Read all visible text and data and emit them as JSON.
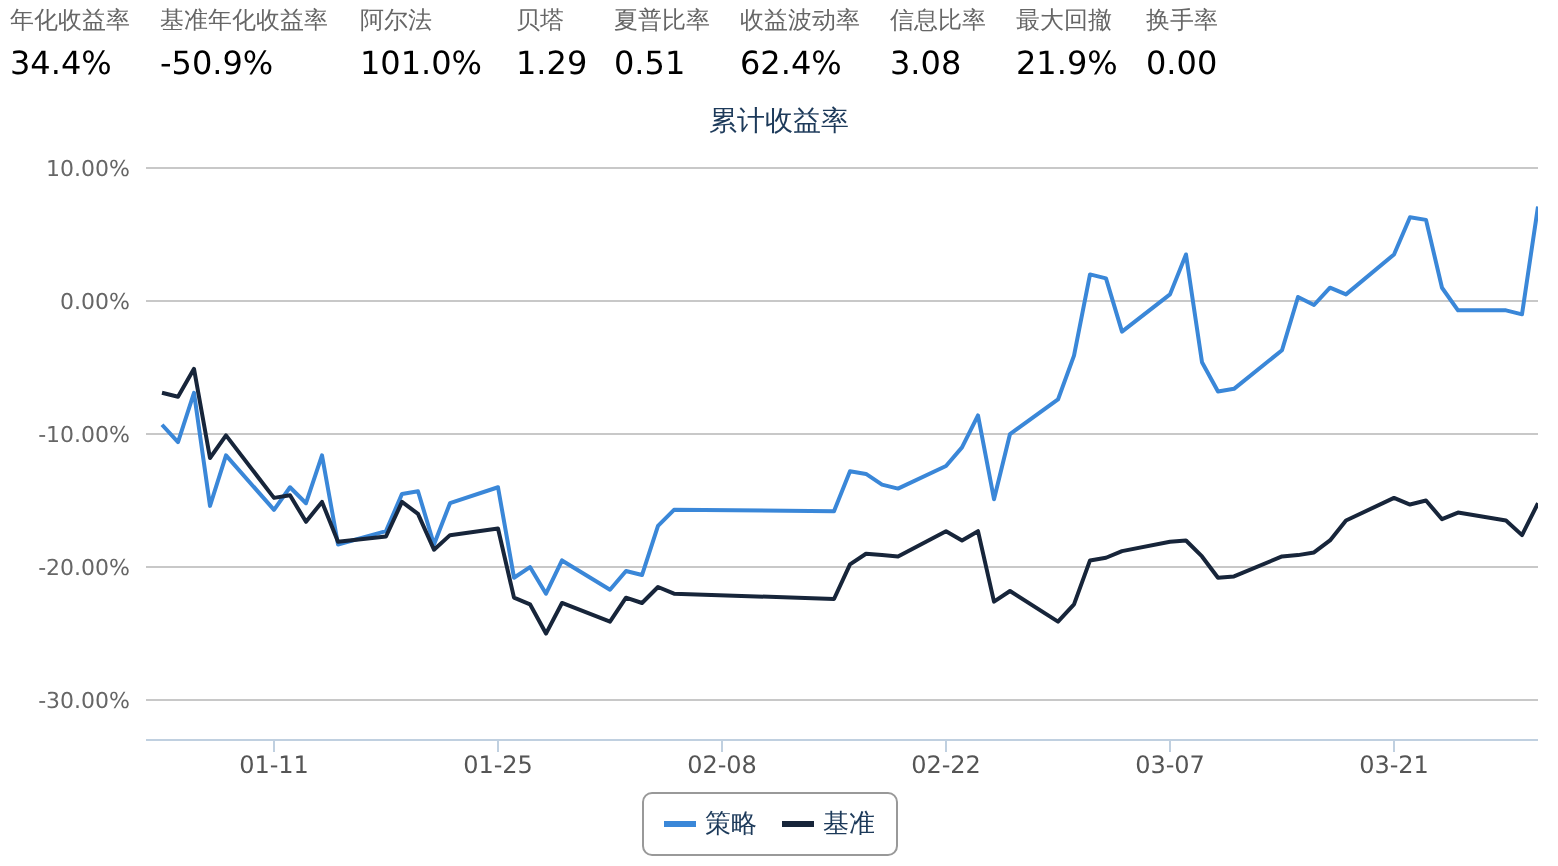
{
  "chart_data": {
    "type": "line",
    "title": "累计收益率",
    "annotations": [
      "年化收益率",
      "34.4%",
      "基准年化收益率",
      "-50.9%",
      "阿尔法",
      "101.0%",
      "贝塔",
      "1.29",
      "夏普比率",
      "0.51",
      "收益波动率",
      "62.4%",
      "信息比率",
      "3.08",
      "最大回撤",
      "21.9%",
      "换手率",
      "0.00"
    ],
    "x": [
      "--01-04",
      "--01-05",
      "--01-06",
      "--01-07",
      "--01-08",
      "--01-11",
      "--01-12",
      "--01-13",
      "--01-14",
      "--01-15",
      "--01-18",
      "--01-19",
      "--01-20",
      "--01-21",
      "--01-22",
      "--01-25",
      "--01-26",
      "--01-27",
      "--01-28",
      "--01-29",
      "--02-01",
      "--02-02",
      "--02-03",
      "--02-04",
      "--02-05",
      "--02-15",
      "--02-16",
      "--02-17",
      "--02-18",
      "--02-19",
      "--02-22",
      "--02-23",
      "--02-24",
      "--02-25",
      "--02-26",
      "--02-29",
      "--03-01",
      "--03-02",
      "--03-03",
      "--03-04",
      "--03-07",
      "--03-08",
      "--03-09",
      "--03-10",
      "--03-11",
      "--03-14",
      "--03-15",
      "--03-16",
      "--03-17",
      "--03-18",
      "--03-21",
      "--03-22",
      "--03-23",
      "--03-24",
      "--03-25",
      "--03-28",
      "--03-29",
      "--03-30"
    ],
    "series": [
      {
        "name": "策略",
        "color": "#3a87d8",
        "values": [
          -9.3,
          -10.6,
          -6.9,
          -15.4,
          -11.6,
          -15.7,
          -14.0,
          -15.2,
          -11.6,
          -18.3,
          -17.3,
          -14.5,
          -14.3,
          -18.3,
          -15.2,
          -14.0,
          -20.8,
          -20.0,
          -22.0,
          -19.5,
          -21.7,
          -20.3,
          -20.6,
          -16.9,
          -15.7,
          -15.8,
          -12.8,
          -13.0,
          -13.8,
          -14.1,
          -12.4,
          -11.0,
          -8.6,
          -14.9,
          -10.0,
          -7.4,
          -4.1,
          2.0,
          1.7,
          -2.3,
          0.5,
          3.5,
          -4.6,
          -6.8,
          -6.6,
          -3.7,
          0.3,
          -0.3,
          1.0,
          0.5,
          3.5,
          6.3,
          6.1,
          1.0,
          -0.7,
          -0.7,
          -1.0,
          7.1
        ]
      },
      {
        "name": "基准",
        "color": "#17253a",
        "values": [
          -6.9,
          -7.2,
          -5.1,
          -11.8,
          -10.1,
          -14.8,
          -14.6,
          -16.6,
          -15.1,
          -18.1,
          -17.7,
          -15.1,
          -16.0,
          -18.7,
          -17.6,
          -17.1,
          -22.3,
          -22.8,
          -25.0,
          -22.7,
          -24.1,
          -22.3,
          -22.7,
          -21.5,
          -22.0,
          -22.4,
          -19.8,
          -19.0,
          -19.1,
          -19.2,
          -17.3,
          -18.0,
          -17.3,
          -22.6,
          -21.8,
          -24.1,
          -22.8,
          -19.5,
          -19.3,
          -18.8,
          -18.1,
          -18.0,
          -19.2,
          -20.8,
          -20.7,
          -19.2,
          -19.1,
          -18.9,
          -18.0,
          -16.5,
          -14.8,
          -15.3,
          -15.0,
          -16.4,
          -15.9,
          -16.5,
          -17.6,
          -15.2
        ]
      }
    ],
    "xlim": [
      "--01-03",
      "--03-30"
    ],
    "xticks": [
      {
        "value": "--01-11",
        "label": "01-11"
      },
      {
        "value": "--01-25",
        "label": "01-25"
      },
      {
        "value": "--02-08",
        "label": "02-08"
      },
      {
        "value": "--02-22",
        "label": "02-22"
      },
      {
        "value": "--03-07",
        "label": "03-07"
      },
      {
        "value": "--03-21",
        "label": "03-21"
      }
    ],
    "ylim": [
      -33,
      10
    ],
    "yticks": [
      {
        "value": 10,
        "label": "10.00%"
      },
      {
        "value": 0,
        "label": "0.00%"
      },
      {
        "value": -10,
        "label": "-10.00%"
      },
      {
        "value": -20,
        "label": "-20.00%"
      },
      {
        "value": -30,
        "label": "-30.00%"
      }
    ],
    "grid": "y",
    "legend": "bottom",
    "marker": "none",
    "line_style": "solid"
  }
}
